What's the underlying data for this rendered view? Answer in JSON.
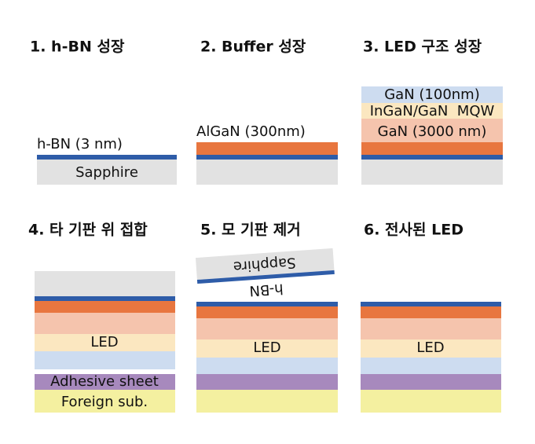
{
  "panels": [
    {
      "title": "1. h-BN 성장",
      "labels": [
        "h-BN (3 nm)",
        "Sapphire"
      ]
    },
    {
      "title": "2. Buffer 성장",
      "labels": [
        "AlGaN (300nm)"
      ]
    },
    {
      "title": "3. LED 구조 성장",
      "labels": [
        "GaN (100nm)",
        "InGaN/GaN  MQW",
        "GaN (3000 nm)"
      ]
    },
    {
      "title": "4. 타 기판 위 접합",
      "labels": [
        "LED",
        "Adhesive sheet",
        "Foreign sub."
      ]
    },
    {
      "title": "5. 모 기판 제거",
      "labels": [
        "Sapphire",
        "h-BN",
        "LED"
      ]
    },
    {
      "title": "6. 전사된 LED",
      "labels": [
        "LED"
      ]
    }
  ]
}
